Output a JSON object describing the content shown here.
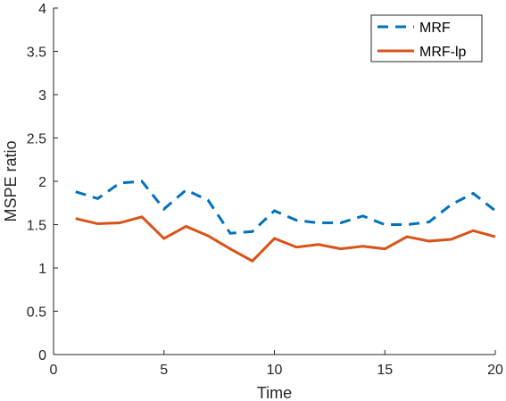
{
  "chart_data": {
    "type": "line",
    "title": "",
    "xlabel": "Time",
    "ylabel": "MSPE ratio",
    "xlim": [
      0,
      20
    ],
    "ylim": [
      0,
      4
    ],
    "xticks": [
      0,
      5,
      10,
      15,
      20
    ],
    "yticks": [
      0,
      0.5,
      1,
      1.5,
      2,
      2.5,
      3,
      3.5,
      4
    ],
    "x": [
      1,
      2,
      3,
      4,
      5,
      6,
      7,
      8,
      9,
      10,
      11,
      12,
      13,
      14,
      15,
      16,
      17,
      18,
      19,
      20
    ],
    "series": [
      {
        "name": "MRF",
        "color": "#0072BD",
        "style": "dashed",
        "values": [
          1.88,
          1.8,
          1.98,
          2.0,
          1.68,
          1.9,
          1.78,
          1.4,
          1.42,
          1.66,
          1.55,
          1.52,
          1.52,
          1.6,
          1.5,
          1.5,
          1.53,
          1.73,
          1.86,
          1.66
        ]
      },
      {
        "name": "MRF-lp",
        "color": "#D95319",
        "style": "solid",
        "values": [
          1.57,
          1.51,
          1.52,
          1.59,
          1.34,
          1.48,
          1.37,
          1.22,
          1.08,
          1.34,
          1.24,
          1.27,
          1.22,
          1.25,
          1.22,
          1.36,
          1.31,
          1.33,
          1.43,
          1.36
        ]
      }
    ],
    "grid": false,
    "legend_position": "top-right"
  }
}
